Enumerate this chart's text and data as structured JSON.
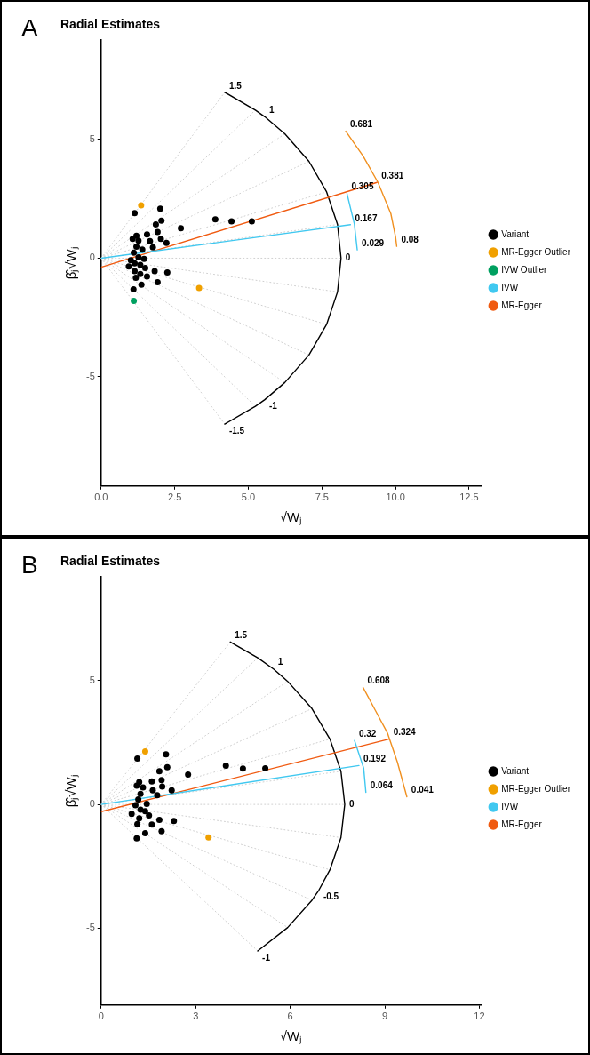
{
  "chart_data": [
    {
      "type": "scatter",
      "title": "Radial Estimates",
      "xlabel": "√Wⱼ",
      "ylabel": "β̂ⱼ√Wⱼ",
      "xlim": [
        0,
        12.9
      ],
      "ylim": [
        -9.6,
        9.2
      ],
      "xticks": [
        {
          "value": 0,
          "label": "0.0"
        },
        {
          "value": 2.5,
          "label": "2.5"
        },
        {
          "value": 5,
          "label": "5.0"
        },
        {
          "value": 7.5,
          "label": "7.5"
        },
        {
          "value": 10,
          "label": "10.0"
        },
        {
          "value": 12.5,
          "label": "12.5"
        }
      ],
      "yticks": [
        -5,
        0,
        5
      ],
      "grid": false,
      "legend": "right",
      "annotations": [
        "A",
        {
          "text": "1.5",
          "x": 4.2,
          "y": 6.99
        },
        {
          "text": "1",
          "x": 5.56,
          "y": 5.96
        },
        {
          "text": "0",
          "x": 8.15,
          "y": 0
        },
        {
          "text": "-1",
          "x": 5.56,
          "y": -5.96
        },
        {
          "text": "-1.5",
          "x": 4.2,
          "y": -6.99
        },
        {
          "text": "0.681",
          "x": 8.31,
          "y": 5.35
        },
        {
          "text": "0.381",
          "x": 9.37,
          "y": 3.19
        },
        {
          "text": "0.08",
          "x": 10.04,
          "y": 0.5
        },
        {
          "text": "0.305",
          "x": 8.35,
          "y": 2.73
        },
        {
          "text": "0.167",
          "x": 8.47,
          "y": 1.41
        },
        {
          "text": "0.029",
          "x": 8.7,
          "y": 0.35
        }
      ],
      "series": [
        {
          "name": "Variant",
          "type": "scatter",
          "color": "#000000",
          "x": [
            1.14,
            2.01,
            2.05,
            1.86,
            2.71,
            3.88,
            4.43,
            5.12,
            1.56,
            1.92,
            2.03,
            2.22,
            1.76,
            1.2,
            1.07,
            1.27,
            1.66,
            1.2,
            1.4,
            1.11,
            1.27,
            1.46,
            1.01,
            1.14,
            0.94,
            1.33,
            1.5,
            1.14,
            1.82,
            2.25,
            1.33,
            1.56,
            1.18,
            1.92,
            1.37,
            1.1
          ],
          "values": [
            1.9,
            2.09,
            1.58,
            1.42,
            1.26,
            1.64,
            1.55,
            1.55,
            1.0,
            1.1,
            0.81,
            0.64,
            0.46,
            0.94,
            0.81,
            0.74,
            0.72,
            0.49,
            0.36,
            0.23,
            0.04,
            -0.03,
            -0.09,
            -0.22,
            -0.35,
            -0.28,
            -0.41,
            -0.54,
            -0.54,
            -0.6,
            -0.67,
            -0.77,
            -0.83,
            -1.01,
            -1.12,
            -1.31
          ]
        },
        {
          "name": "MR-Egger Outlier",
          "type": "scatter",
          "color": "#f0a000",
          "x": [
            1.36,
            3.33
          ],
          "values": [
            2.23,
            -1.26
          ]
        },
        {
          "name": "IVW Outlier",
          "type": "scatter",
          "color": "#00a060",
          "x": [
            1.11
          ],
          "values": [
            -1.8
          ]
        },
        {
          "name": "IVW",
          "type": "line",
          "color": "#40c8f0",
          "x": [
            0,
            8.47
          ],
          "values": [
            0,
            1.41
          ]
        },
        {
          "name": "MR-Egger",
          "type": "line",
          "color": "#f05a10",
          "x": [
            0,
            9.37
          ],
          "values": [
            -0.38,
            3.19
          ]
        },
        {
          "type": "line",
          "color": "#000000",
          "x": [
            4.2,
            5.24,
            5.56,
            6.24,
            7.06,
            7.66,
            8.03,
            8.15,
            8.03,
            7.66,
            7.06,
            6.24,
            5.56,
            5.24,
            4.2
          ],
          "values": [
            6.99,
            6.24,
            5.96,
            5.24,
            4.08,
            2.79,
            1.42,
            0,
            -1.42,
            -2.79,
            -4.08,
            -5.24,
            -5.96,
            -6.24,
            -6.99
          ]
        },
        {
          "type": "line",
          "color": "#f09020",
          "x": [
            8.31,
            8.9,
            9.4,
            9.84,
            10.0,
            10.04
          ],
          "values": [
            5.35,
            4.3,
            3.2,
            1.88,
            0.9,
            0.5
          ]
        },
        {
          "type": "line",
          "color": "#40c8f0",
          "x": [
            8.35,
            8.6,
            8.7
          ],
          "values": [
            2.73,
            1.45,
            0.35
          ]
        },
        {
          "type": "line",
          "color": "#d0d0d0",
          "line_style": "dotted",
          "x": [
            0,
            4.2
          ],
          "values": [
            0,
            6.99
          ]
        },
        {
          "type": "line",
          "color": "#d0d0d0",
          "line_style": "dotted",
          "x": [
            0,
            5.24
          ],
          "values": [
            0,
            6.24
          ]
        },
        {
          "type": "line",
          "color": "#d0d0d0",
          "line_style": "dotted",
          "x": [
            0,
            6.24
          ],
          "values": [
            0,
            5.24
          ]
        },
        {
          "type": "line",
          "color": "#d0d0d0",
          "line_style": "dotted",
          "x": [
            0,
            7.06
          ],
          "values": [
            0,
            4.08
          ]
        },
        {
          "type": "line",
          "color": "#d0d0d0",
          "line_style": "dotted",
          "x": [
            0,
            7.66
          ],
          "values": [
            0,
            2.79
          ]
        },
        {
          "type": "line",
          "color": "#d0d0d0",
          "line_style": "dotted",
          "x": [
            0,
            8.03
          ],
          "values": [
            0,
            1.42
          ]
        },
        {
          "type": "line",
          "color": "#d0d0d0",
          "line_style": "dotted",
          "x": [
            0,
            8.15
          ],
          "values": [
            0,
            0
          ]
        },
        {
          "type": "line",
          "color": "#d0d0d0",
          "line_style": "dotted",
          "x": [
            0,
            8.03
          ],
          "values": [
            0,
            -1.42
          ]
        },
        {
          "type": "line",
          "color": "#d0d0d0",
          "line_style": "dotted",
          "x": [
            0,
            7.66
          ],
          "values": [
            0,
            -2.79
          ]
        },
        {
          "type": "line",
          "color": "#d0d0d0",
          "line_style": "dotted",
          "x": [
            0,
            7.06
          ],
          "values": [
            0,
            -4.08
          ]
        },
        {
          "type": "line",
          "color": "#d0d0d0",
          "line_style": "dotted",
          "x": [
            0,
            6.24
          ],
          "values": [
            0,
            -5.24
          ]
        },
        {
          "type": "line",
          "color": "#d0d0d0",
          "line_style": "dotted",
          "x": [
            0,
            5.24
          ],
          "values": [
            0,
            -6.24
          ]
        },
        {
          "type": "line",
          "color": "#d0d0d0",
          "line_style": "dotted",
          "x": [
            0,
            4.2
          ],
          "values": [
            0,
            -6.99
          ]
        }
      ]
    },
    {
      "type": "scatter",
      "title": "Radial Estimates",
      "xlabel": "√Wⱼ",
      "ylabel": "β̂ⱼ√Wⱼ",
      "xlim": [
        0,
        12.05
      ],
      "ylim": [
        -8.1,
        9.2
      ],
      "xticks": [
        0,
        3,
        6,
        9,
        12
      ],
      "yticks": [
        -5,
        0,
        5
      ],
      "grid": false,
      "legend": "right",
      "annotations": [
        "B",
        {
          "text": "1.5",
          "x": 4.1,
          "y": 6.56
        },
        {
          "text": "1",
          "x": 5.47,
          "y": 5.47
        },
        {
          "text": "0",
          "x": 7.73,
          "y": 0
        },
        {
          "text": "-0.5",
          "x": 6.91,
          "y": -3.46
        },
        {
          "text": "-1",
          "x": 4.97,
          "y": -5.92
        },
        {
          "text": "0.608",
          "x": 8.31,
          "y": 4.73
        },
        {
          "text": "0.324",
          "x": 9.13,
          "y": 2.64
        },
        {
          "text": "0.041",
          "x": 9.7,
          "y": 0.31
        },
        {
          "text": "0.32",
          "x": 8.04,
          "y": 2.58
        },
        {
          "text": "0.192",
          "x": 8.18,
          "y": 1.57
        },
        {
          "text": "0.064",
          "x": 8.4,
          "y": 0.49
        }
      ],
      "series": [
        {
          "name": "Variant",
          "type": "scatter",
          "color": "#000000",
          "x": [
            1.15,
            2.06,
            2.1,
            1.85,
            2.76,
            3.96,
            4.5,
            5.21,
            1.61,
            1.92,
            1.21,
            1.13,
            1.33,
            1.64,
            1.94,
            2.24,
            1.78,
            1.25,
            1.18,
            1.45,
            1.09,
            1.25,
            0.97,
            1.4,
            1.52,
            1.21,
            1.85,
            2.31,
            1.15,
            1.61,
            1.4,
            1.92,
            1.13
          ],
          "values": [
            1.85,
            2.02,
            1.5,
            1.34,
            1.21,
            1.57,
            1.45,
            1.46,
            0.93,
            0.98,
            0.9,
            0.76,
            0.69,
            0.57,
            0.72,
            0.57,
            0.37,
            0.43,
            0.2,
            0.02,
            -0.03,
            -0.21,
            -0.38,
            -0.27,
            -0.44,
            -0.56,
            -0.62,
            -0.67,
            -0.79,
            -0.81,
            -1.16,
            -1.08,
            -1.37
          ]
        },
        {
          "name": "MR-Egger Outlier",
          "type": "scatter",
          "color": "#f0a000",
          "x": [
            1.4,
            3.41
          ],
          "values": [
            2.14,
            -1.33
          ]
        },
        {
          "name": "IVW",
          "type": "line",
          "color": "#40c8f0",
          "x": [
            0,
            8.18
          ],
          "values": [
            0,
            1.57
          ]
        },
        {
          "name": "MR-Egger",
          "type": "line",
          "color": "#f05a10",
          "x": [
            0,
            9.13
          ],
          "values": [
            -0.29,
            2.64
          ]
        },
        {
          "type": "line",
          "color": "#000000",
          "x": [
            4.1,
            4.97,
            5.47,
            5.92,
            6.69,
            7.26,
            7.61,
            7.73,
            7.61,
            7.26,
            6.91,
            6.69,
            5.92,
            4.97
          ],
          "values": [
            6.56,
            5.92,
            5.47,
            4.97,
            3.87,
            2.64,
            1.34,
            0,
            -1.34,
            -2.64,
            -3.46,
            -3.87,
            -4.97,
            -5.92
          ]
        },
        {
          "type": "line",
          "color": "#f09020",
          "x": [
            8.31,
            8.7,
            9.09,
            9.4,
            9.7
          ],
          "values": [
            4.73,
            3.8,
            2.87,
            1.71,
            0.31
          ]
        },
        {
          "type": "line",
          "color": "#40c8f0",
          "x": [
            8.04,
            8.33,
            8.4
          ],
          "values": [
            2.58,
            1.47,
            0.49
          ]
        },
        {
          "type": "line",
          "color": "#d0d0d0",
          "line_style": "dotted",
          "x": [
            0,
            4.1
          ],
          "values": [
            0,
            6.56
          ]
        },
        {
          "type": "line",
          "color": "#d0d0d0",
          "line_style": "dotted",
          "x": [
            0,
            4.97
          ],
          "values": [
            0,
            5.92
          ]
        },
        {
          "type": "line",
          "color": "#d0d0d0",
          "line_style": "dotted",
          "x": [
            0,
            5.92
          ],
          "values": [
            0,
            4.97
          ]
        },
        {
          "type": "line",
          "color": "#d0d0d0",
          "line_style": "dotted",
          "x": [
            0,
            6.69
          ],
          "values": [
            0,
            3.87
          ]
        },
        {
          "type": "line",
          "color": "#d0d0d0",
          "line_style": "dotted",
          "x": [
            0,
            7.26
          ],
          "values": [
            0,
            2.64
          ]
        },
        {
          "type": "line",
          "color": "#d0d0d0",
          "line_style": "dotted",
          "x": [
            0,
            7.61
          ],
          "values": [
            0,
            1.34
          ]
        },
        {
          "type": "line",
          "color": "#d0d0d0",
          "line_style": "dotted",
          "x": [
            0,
            7.73
          ],
          "values": [
            0,
            0
          ]
        },
        {
          "type": "line",
          "color": "#d0d0d0",
          "line_style": "dotted",
          "x": [
            0,
            7.61
          ],
          "values": [
            0,
            -1.34
          ]
        },
        {
          "type": "line",
          "color": "#d0d0d0",
          "line_style": "dotted",
          "x": [
            0,
            7.26
          ],
          "values": [
            0,
            -2.64
          ]
        },
        {
          "type": "line",
          "color": "#d0d0d0",
          "line_style": "dotted",
          "x": [
            0,
            6.69
          ],
          "values": [
            0,
            -3.87
          ]
        },
        {
          "type": "line",
          "color": "#d0d0d0",
          "line_style": "dotted",
          "x": [
            0,
            5.92
          ],
          "values": [
            0,
            -4.97
          ]
        },
        {
          "type": "line",
          "color": "#d0d0d0",
          "line_style": "dotted",
          "x": [
            0,
            4.97
          ],
          "values": [
            0,
            -5.92
          ]
        }
      ]
    }
  ]
}
